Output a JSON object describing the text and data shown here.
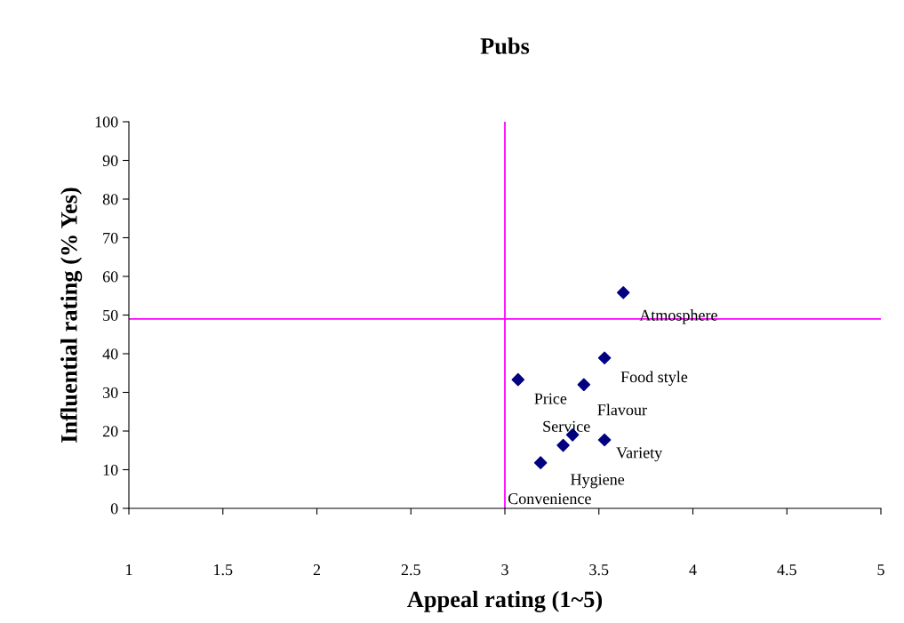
{
  "chart_data": {
    "type": "scatter",
    "title": "Pubs",
    "xlabel": "Appeal rating (1~5)",
    "ylabel": "Influential rating (% Yes)",
    "series": [
      {
        "color": "#000080",
        "x": [
          3.63,
          3.53,
          3.07,
          3.42,
          3.36,
          3.53,
          3.31,
          3.19
        ],
        "values": [
          55.8,
          38.9,
          33.3,
          32.0,
          19.0,
          17.7,
          16.3,
          11.8
        ]
      }
    ],
    "marker": "diamond",
    "xlim": [
      1,
      5
    ],
    "xticks": [
      1,
      1.5,
      2,
      2.5,
      3,
      3.5,
      4,
      4.5,
      5
    ],
    "ylim": [
      0,
      100
    ],
    "yticks": [
      0,
      10,
      20,
      30,
      40,
      50,
      60,
      70,
      80,
      90,
      100
    ],
    "grid": false,
    "legend": false,
    "ref_lines": [
      {
        "axis": "x",
        "value": 3,
        "color": "#ff00ff"
      },
      {
        "axis": "y",
        "value": 49,
        "color": "#ff00ff"
      }
    ],
    "annotations": [
      {
        "text": "Atmosphere",
        "x": 3.63,
        "y": 55.8
      },
      {
        "text": "Food style",
        "x": 3.53,
        "y": 38.9
      },
      {
        "text": "Price",
        "x": 3.07,
        "y": 33.3
      },
      {
        "text": "Flavour",
        "x": 3.42,
        "y": 32.0
      },
      {
        "text": "Service",
        "x": 3.36,
        "y": 19.0
      },
      {
        "text": "Variety",
        "x": 3.53,
        "y": 17.7
      },
      {
        "text": "Hygiene",
        "x": 3.31,
        "y": 16.3
      },
      {
        "text": "Convenience",
        "x": 3.19,
        "y": 11.8
      }
    ]
  }
}
